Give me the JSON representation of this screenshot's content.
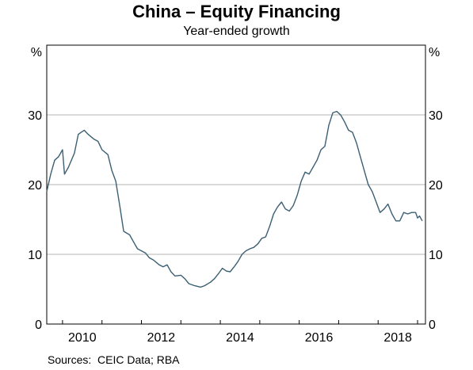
{
  "chart_data": {
    "type": "line",
    "title": "China – Equity Financing",
    "subtitle": "Year-ended growth",
    "y_unit_left": "%",
    "y_unit_right": "%",
    "ylim": [
      0,
      40
    ],
    "yticks": [
      0,
      10,
      20,
      30
    ],
    "grid": true,
    "xlim": [
      2009.6,
      2019.2
    ],
    "xticks": [
      {
        "value": 2010,
        "label": "2010"
      },
      {
        "value": 2012,
        "label": "2012"
      },
      {
        "value": 2014,
        "label": "2014"
      },
      {
        "value": 2016,
        "label": "2016"
      },
      {
        "value": 2018,
        "label": "2018"
      }
    ],
    "series": [
      {
        "color": "#3b5f73",
        "points": [
          [
            2009.6,
            19.0
          ],
          [
            2009.7,
            21.5
          ],
          [
            2009.8,
            23.5
          ],
          [
            2009.9,
            24.0
          ],
          [
            2010.0,
            25.0
          ],
          [
            2010.05,
            21.5
          ],
          [
            2010.15,
            22.5
          ],
          [
            2010.3,
            24.5
          ],
          [
            2010.4,
            27.2
          ],
          [
            2010.5,
            27.6
          ],
          [
            2010.55,
            27.8
          ],
          [
            2010.65,
            27.2
          ],
          [
            2010.8,
            26.5
          ],
          [
            2010.9,
            26.2
          ],
          [
            2011.0,
            25.0
          ],
          [
            2011.15,
            24.3
          ],
          [
            2011.25,
            22.0
          ],
          [
            2011.35,
            20.5
          ],
          [
            2011.45,
            17.0
          ],
          [
            2011.55,
            13.3
          ],
          [
            2011.7,
            12.8
          ],
          [
            2011.8,
            11.8
          ],
          [
            2011.9,
            10.8
          ],
          [
            2012.0,
            10.5
          ],
          [
            2012.1,
            10.2
          ],
          [
            2012.2,
            9.5
          ],
          [
            2012.3,
            9.2
          ],
          [
            2012.45,
            8.5
          ],
          [
            2012.55,
            8.2
          ],
          [
            2012.65,
            8.5
          ],
          [
            2012.75,
            7.5
          ],
          [
            2012.85,
            6.9
          ],
          [
            2013.0,
            7.0
          ],
          [
            2013.1,
            6.5
          ],
          [
            2013.2,
            5.8
          ],
          [
            2013.35,
            5.5
          ],
          [
            2013.5,
            5.3
          ],
          [
            2013.6,
            5.5
          ],
          [
            2013.75,
            6.0
          ],
          [
            2013.85,
            6.5
          ],
          [
            2013.95,
            7.2
          ],
          [
            2014.05,
            8.0
          ],
          [
            2014.15,
            7.6
          ],
          [
            2014.25,
            7.5
          ],
          [
            2014.35,
            8.2
          ],
          [
            2014.45,
            9.0
          ],
          [
            2014.55,
            10.0
          ],
          [
            2014.65,
            10.5
          ],
          [
            2014.75,
            10.8
          ],
          [
            2014.85,
            11.0
          ],
          [
            2014.95,
            11.5
          ],
          [
            2015.05,
            12.3
          ],
          [
            2015.15,
            12.5
          ],
          [
            2015.25,
            14.0
          ],
          [
            2015.35,
            15.8
          ],
          [
            2015.45,
            16.8
          ],
          [
            2015.55,
            17.5
          ],
          [
            2015.65,
            16.5
          ],
          [
            2015.75,
            16.2
          ],
          [
            2015.85,
            17.0
          ],
          [
            2015.95,
            18.5
          ],
          [
            2016.05,
            20.5
          ],
          [
            2016.15,
            21.8
          ],
          [
            2016.25,
            21.5
          ],
          [
            2016.35,
            22.5
          ],
          [
            2016.45,
            23.5
          ],
          [
            2016.55,
            25.0
          ],
          [
            2016.65,
            25.5
          ],
          [
            2016.75,
            28.5
          ],
          [
            2016.85,
            30.3
          ],
          [
            2016.95,
            30.5
          ],
          [
            2017.05,
            30.0
          ],
          [
            2017.15,
            29.0
          ],
          [
            2017.25,
            27.8
          ],
          [
            2017.35,
            27.5
          ],
          [
            2017.45,
            26.0
          ],
          [
            2017.55,
            24.0
          ],
          [
            2017.65,
            22.0
          ],
          [
            2017.75,
            20.0
          ],
          [
            2017.85,
            19.0
          ],
          [
            2017.95,
            17.5
          ],
          [
            2018.05,
            16.0
          ],
          [
            2018.15,
            16.5
          ],
          [
            2018.25,
            17.2
          ],
          [
            2018.35,
            15.8
          ],
          [
            2018.45,
            14.8
          ],
          [
            2018.55,
            14.8
          ],
          [
            2018.65,
            16.0
          ],
          [
            2018.75,
            15.8
          ],
          [
            2018.85,
            16.0
          ],
          [
            2018.95,
            16.0
          ],
          [
            2019.0,
            15.2
          ],
          [
            2019.05,
            15.5
          ],
          [
            2019.12,
            14.8
          ]
        ]
      }
    ]
  },
  "source": "Sources:  CEIC Data; RBA"
}
